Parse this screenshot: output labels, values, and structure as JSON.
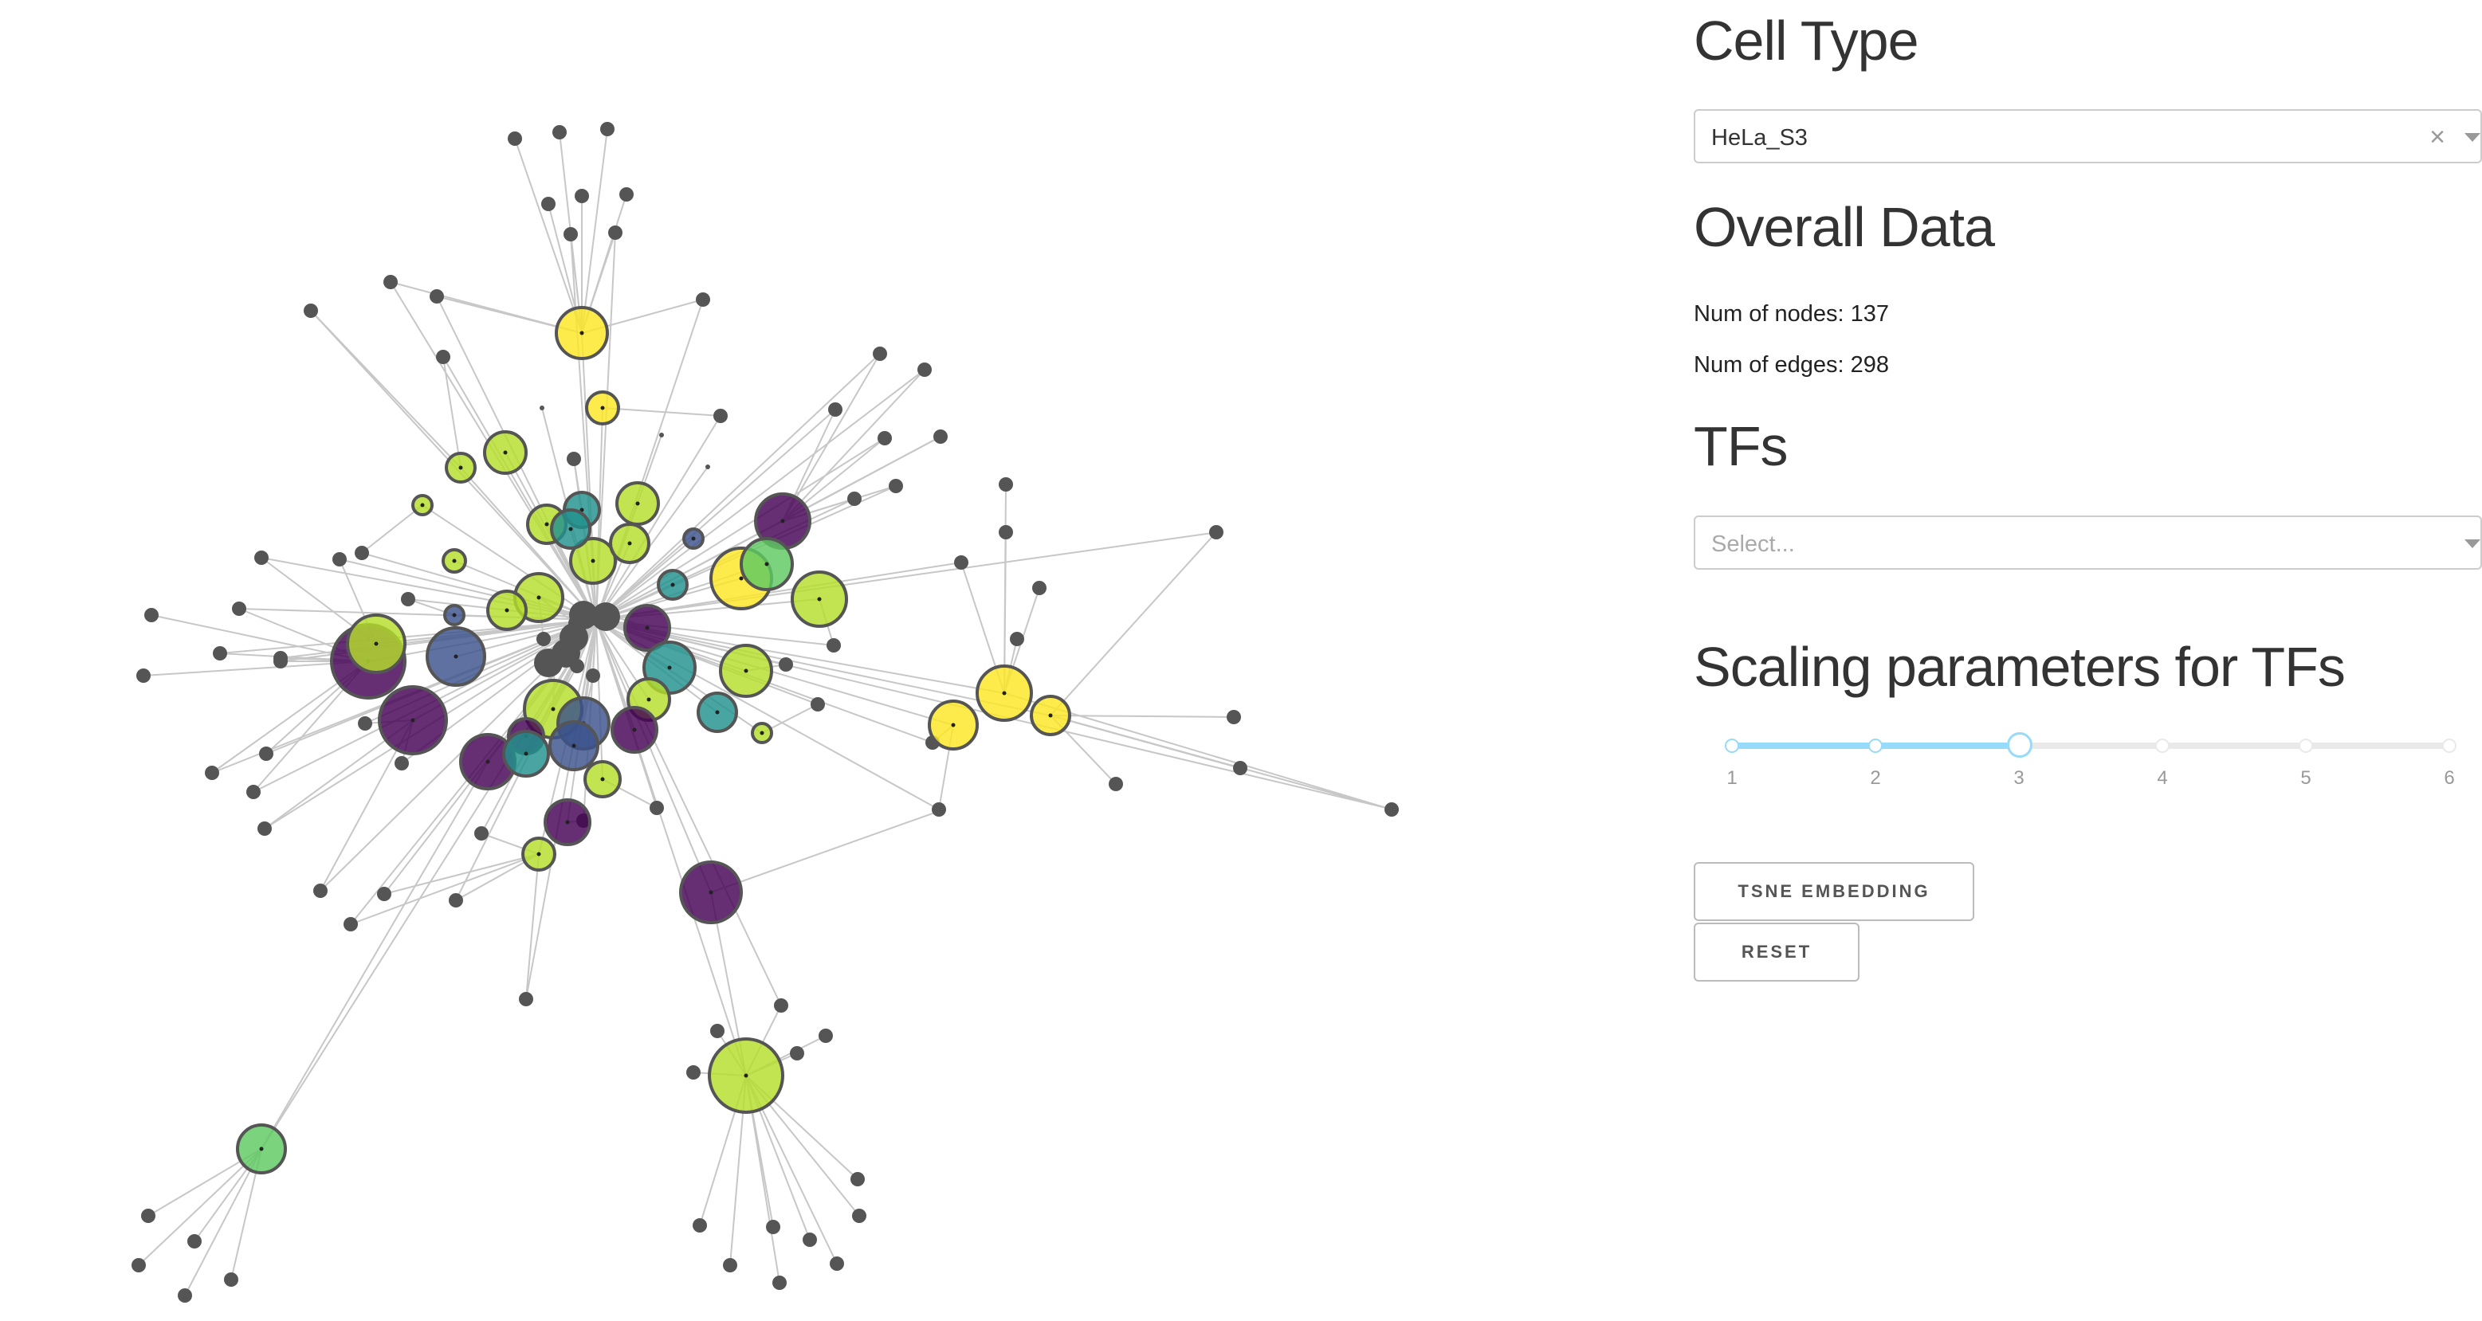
{
  "cell_type": {
    "heading": "Cell Type",
    "selected": "HeLa_S3",
    "clear_icon": "×"
  },
  "overall": {
    "heading": "Overall Data",
    "nodes_text": "Num of nodes: 137",
    "edges_text": "Num of edges: 298"
  },
  "tfs": {
    "heading": "TFs",
    "placeholder": "Select..."
  },
  "scaling": {
    "heading": "Scaling parameters for TFs",
    "marks": [
      "1",
      "2",
      "3",
      "4",
      "5",
      "6"
    ],
    "value": 3,
    "min": 1,
    "max": 6
  },
  "buttons": {
    "tsne": "TSNE EMBEDDING",
    "reset": "RESET"
  },
  "colors": {
    "accent": "#96dbfa",
    "viridis": [
      "#440154",
      "#3b528b",
      "#21918c",
      "#5ec962",
      "#b5de2b",
      "#fde725"
    ],
    "gray_node": "#555555",
    "edge": "#c7c7c7"
  },
  "graph": {
    "icon": "network-graph"
  }
}
